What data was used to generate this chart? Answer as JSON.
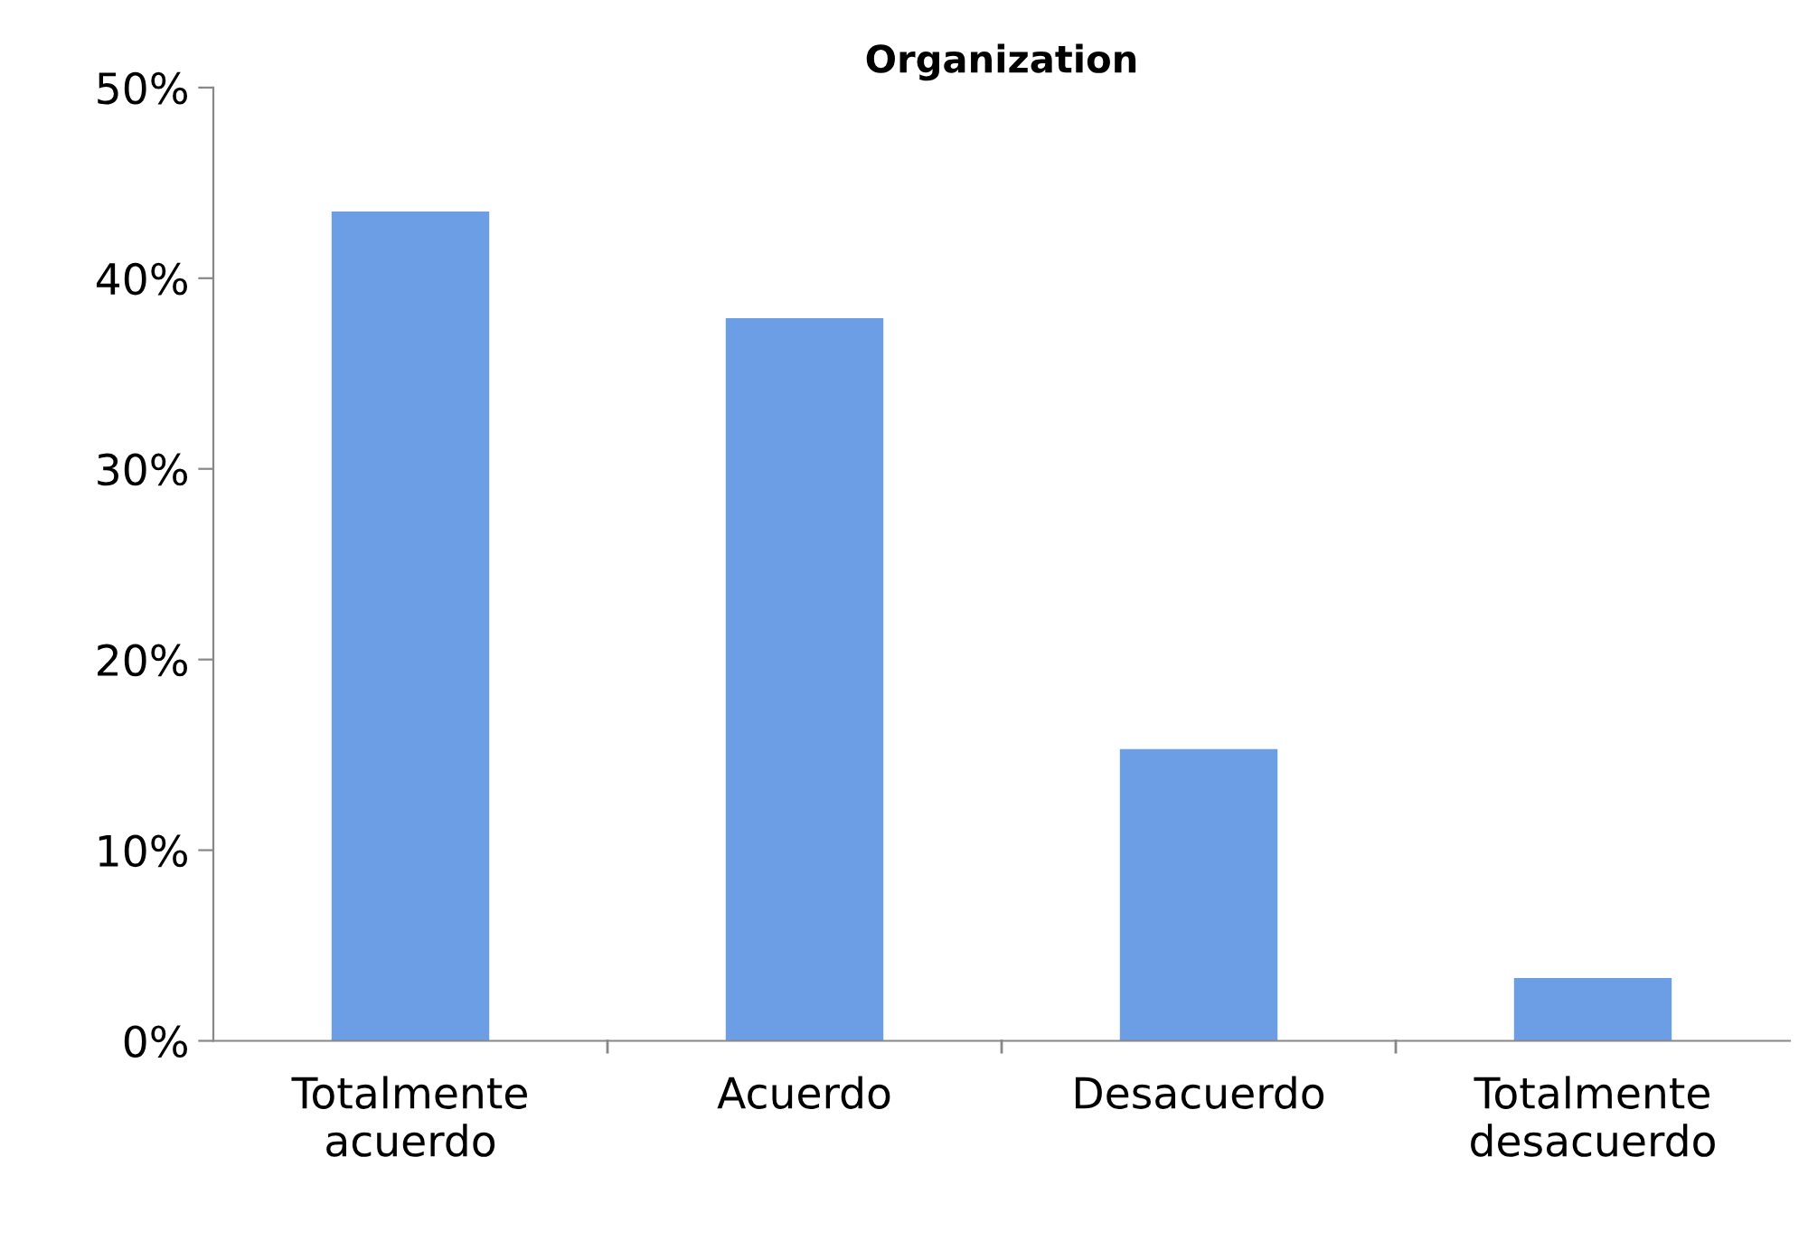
{
  "chart_data": {
    "type": "bar",
    "title": "Organization",
    "categories": [
      "Totalmente\nacuerdo",
      "Acuerdo",
      "Desacuerdo",
      "Totalmente\ndesacuerdo"
    ],
    "values": [
      43.5,
      37.9,
      15.3,
      3.3
    ],
    "color": "#6c9ee6",
    "ylim": [
      0,
      50
    ],
    "yticks": [
      {
        "value": 0,
        "label": "0%"
      },
      {
        "value": 10,
        "label": "10%"
      },
      {
        "value": 20,
        "label": "20%"
      },
      {
        "value": 30,
        "label": "30%"
      },
      {
        "value": 40,
        "label": "40%"
      },
      {
        "value": 50,
        "label": "50%"
      }
    ],
    "grid": false,
    "legend": false
  }
}
